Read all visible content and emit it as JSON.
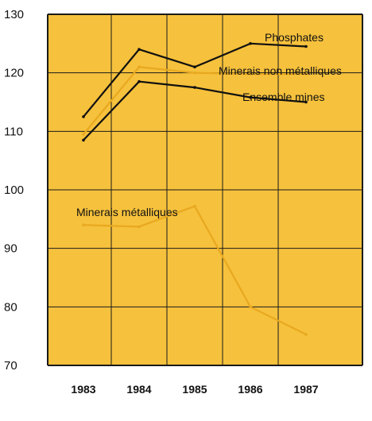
{
  "colors": {
    "plot_background": "#f6c13c",
    "grid": "#1a1a1a",
    "dark_series": "#111111",
    "light_series": "#e8a820"
  },
  "chart_data": {
    "type": "line",
    "title": "",
    "xlabel": "",
    "ylabel": "",
    "x": [
      "1983",
      "1984",
      "1985",
      "1986",
      "1987"
    ],
    "ylim": [
      70,
      130
    ],
    "yticks": [
      70,
      80,
      90,
      100,
      110,
      120,
      130
    ],
    "grid": true,
    "series": [
      {
        "name": "Phosphates",
        "color": "dark",
        "values": [
          112.5,
          124,
          121,
          125,
          124.5
        ]
      },
      {
        "name": "Minerais non métalliques",
        "color": "light",
        "values": [
          109.5,
          121,
          120,
          119.8,
          119.8
        ]
      },
      {
        "name": "Ensemble mines",
        "color": "dark",
        "values": [
          108.5,
          118.5,
          117.5,
          115.8,
          115
        ]
      },
      {
        "name": "Minerais métalliques",
        "color": "light",
        "values": [
          94,
          93.7,
          97.2,
          80,
          75.3
        ]
      }
    ]
  }
}
